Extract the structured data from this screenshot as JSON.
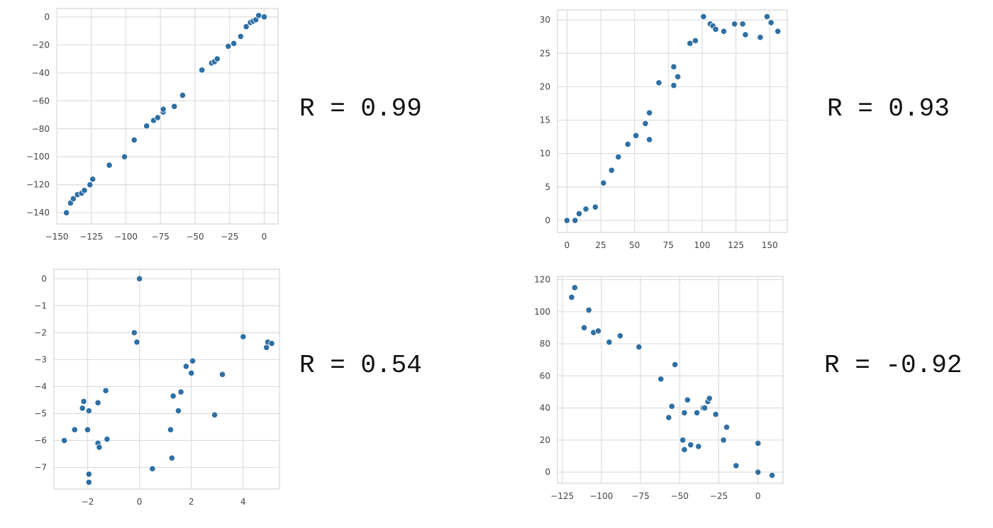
{
  "colors": {
    "marker": "#2f6fa3",
    "grid": "#dddddd",
    "frame": "#cccccc",
    "tick_text": "#444444"
  },
  "chart_data": [
    {
      "type": "scatter",
      "r_label": "R = 0.99",
      "grid": true,
      "xlim": [
        -150,
        10
      ],
      "ylim": [
        -148,
        6
      ],
      "xticks": [
        -150,
        -125,
        -100,
        -75,
        -50,
        -25,
        0
      ],
      "yticks": [
        0,
        -20,
        -40,
        -60,
        -80,
        -100,
        -120,
        -140
      ],
      "xtick_labels": [
        "−150",
        "−125",
        "−100",
        "−75",
        "−50",
        "−25",
        "0"
      ],
      "ytick_labels": [
        "0",
        "−20",
        "−40",
        "−60",
        "−80",
        "−100",
        "−120",
        "−140"
      ],
      "x": [
        -143,
        -140,
        -138,
        -135,
        -132,
        -130,
        -126,
        -124,
        -112,
        -101,
        -94,
        -85,
        -80,
        -77,
        -73,
        -73,
        -65,
        -59,
        -45,
        -38,
        -36,
        -34,
        -26,
        -22,
        -17,
        -13,
        -10,
        -8,
        -6,
        -4,
        0
      ],
      "y": [
        -140,
        -133,
        -130,
        -127,
        -126,
        -124,
        -120,
        -116,
        -106,
        -100,
        -88,
        -78,
        -74,
        -72,
        -68,
        -66,
        -64,
        -56,
        -38,
        -33,
        -32,
        -30,
        -21,
        -19,
        -14,
        -7,
        -4,
        -3,
        -2,
        1,
        0
      ]
    },
    {
      "type": "scatter",
      "r_label": "R = 0.93",
      "grid": true,
      "xlim": [
        -7,
        163
      ],
      "ylim": [
        -1.8,
        31.5
      ],
      "xticks": [
        0,
        25,
        50,
        75,
        100,
        125,
        150
      ],
      "yticks": [
        0,
        5,
        10,
        15,
        20,
        25,
        30
      ],
      "xtick_labels": [
        "0",
        "25",
        "50",
        "75",
        "100",
        "125",
        "150"
      ],
      "ytick_labels": [
        "0",
        "5",
        "10",
        "15",
        "20",
        "25",
        "30"
      ],
      "x": [
        0,
        6,
        9,
        14,
        21,
        27,
        33,
        38,
        45,
        51,
        58,
        61,
        61,
        68,
        79,
        79,
        82,
        91,
        95,
        101,
        106,
        108,
        110,
        116,
        124,
        130,
        132,
        143,
        148,
        151,
        156
      ],
      "y": [
        0,
        0,
        1,
        1.7,
        2,
        5.6,
        7.5,
        9.5,
        11.4,
        12.7,
        14.5,
        12.1,
        16.1,
        20.6,
        20.2,
        23,
        21.5,
        26.5,
        26.9,
        30.5,
        29.4,
        29.1,
        28.6,
        28.3,
        29.4,
        29.4,
        27.8,
        27.4,
        30.5,
        29.6,
        28.3
      ]
    },
    {
      "type": "scatter",
      "r_label": "R = 0.54",
      "grid": true,
      "xlim": [
        -3.3,
        5.4
      ],
      "ylim": [
        -7.8,
        0.35
      ],
      "xticks": [
        -2,
        0,
        2,
        4
      ],
      "yticks": [
        0,
        -1,
        -2,
        -3,
        -4,
        -5,
        -6,
        -7
      ],
      "xtick_labels": [
        "−2",
        "0",
        "2",
        "4"
      ],
      "ytick_labels": [
        "0",
        "−1",
        "−2",
        "−3",
        "−4",
        "−5",
        "−6",
        "−7"
      ],
      "x": [
        -2.9,
        -2.5,
        -2.2,
        -2.15,
        -2.0,
        -1.95,
        -1.95,
        -1.95,
        -1.6,
        -1.6,
        -1.55,
        -1.3,
        -1.25,
        -0.2,
        -0.1,
        0.0,
        0.5,
        1.2,
        1.25,
        1.3,
        1.5,
        1.6,
        1.8,
        2.0,
        2.05,
        2.9,
        3.2,
        4.0,
        4.9,
        4.95,
        5.1
      ],
      "y": [
        -6.0,
        -5.6,
        -4.8,
        -4.55,
        -5.6,
        -4.9,
        -7.25,
        -7.55,
        -4.6,
        -6.1,
        -6.25,
        -4.15,
        -5.95,
        -2.0,
        -2.35,
        0.0,
        -7.05,
        -5.6,
        -6.65,
        -4.35,
        -4.9,
        -4.2,
        -3.25,
        -3.5,
        -3.05,
        -5.05,
        -3.55,
        -2.15,
        -2.55,
        -2.35,
        -2.4
      ]
    },
    {
      "type": "scatter",
      "r_label": "R = -0.92",
      "grid": true,
      "xlim": [
        -128,
        16
      ],
      "ylim": [
        -7,
        122
      ],
      "xticks": [
        -125,
        -100,
        -75,
        -50,
        -25,
        0
      ],
      "yticks": [
        0,
        20,
        40,
        60,
        80,
        100,
        120
      ],
      "xtick_labels": [
        "−125",
        "−100",
        "−75",
        "−50",
        "−25",
        "0"
      ],
      "ytick_labels": [
        "0",
        "20",
        "40",
        "60",
        "80",
        "100",
        "120"
      ],
      "x": [
        -119,
        -117,
        -111,
        -108,
        -105,
        -102,
        -95,
        -88,
        -76,
        -62,
        -57,
        -55,
        -53,
        -48,
        -47,
        -47,
        -45,
        -43,
        -39,
        -38,
        -35,
        -34,
        -32,
        -31,
        -27,
        -22,
        -20,
        -14,
        0,
        0,
        9
      ],
      "y": [
        109,
        115,
        90,
        101,
        87,
        88,
        81,
        85,
        78,
        58,
        34,
        41,
        67,
        20,
        14,
        37,
        45,
        17,
        37,
        16,
        40,
        40,
        44,
        46,
        36,
        20,
        28,
        4,
        18,
        0,
        -2
      ]
    }
  ]
}
